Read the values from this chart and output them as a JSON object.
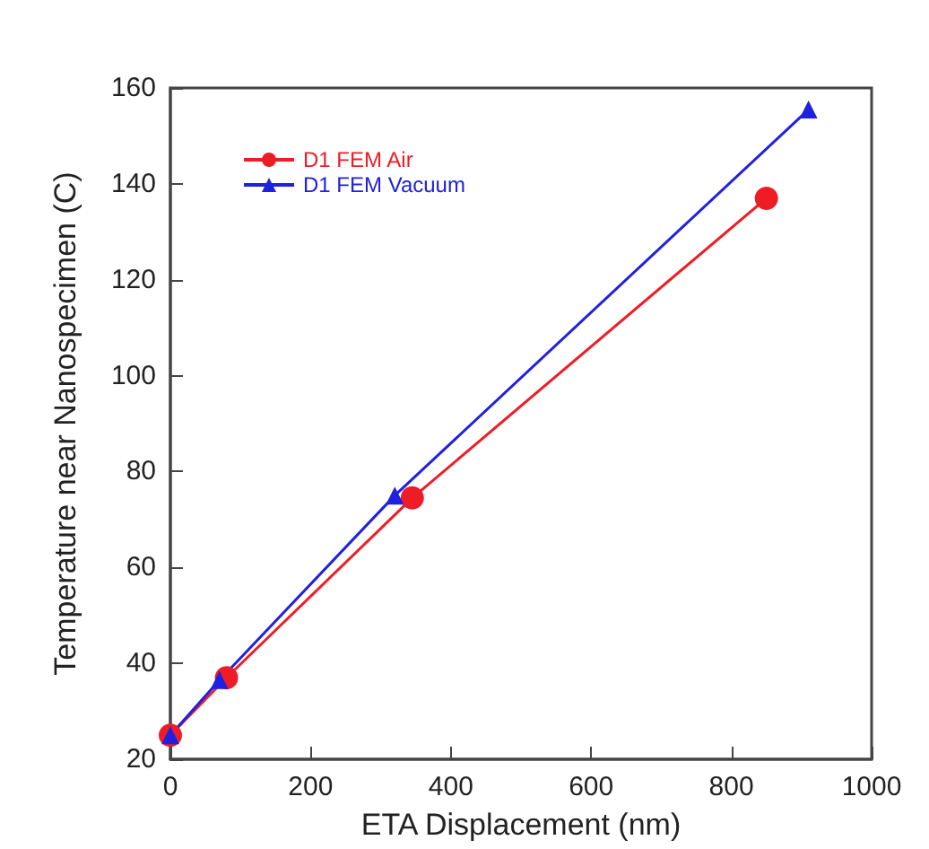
{
  "chart_data": {
    "type": "line",
    "xlabel": "ETA Displacement (nm)",
    "ylabel": "Temperature near Nanospecimen (C)",
    "xlim": [
      0,
      1000
    ],
    "xticks": [
      0,
      200,
      400,
      600,
      800,
      1000
    ],
    "ylim": [
      20,
      160
    ],
    "yticks": [
      20,
      40,
      60,
      80,
      100,
      120,
      140,
      160
    ],
    "grid": false,
    "legend": "top left",
    "line_style": "solid",
    "series": [
      {
        "name": "D1 FEM Air",
        "color": "#ee1c25",
        "marker": "circle",
        "x": [
          0,
          80,
          345,
          850
        ],
        "values": [
          25,
          37,
          74.5,
          137
        ]
      },
      {
        "name": "D1 FEM Vacuum",
        "color": "#2020e0",
        "marker": "triangle",
        "x": [
          0,
          70,
          320,
          910
        ],
        "values": [
          25,
          36.5,
          75,
          155.5
        ]
      }
    ]
  }
}
